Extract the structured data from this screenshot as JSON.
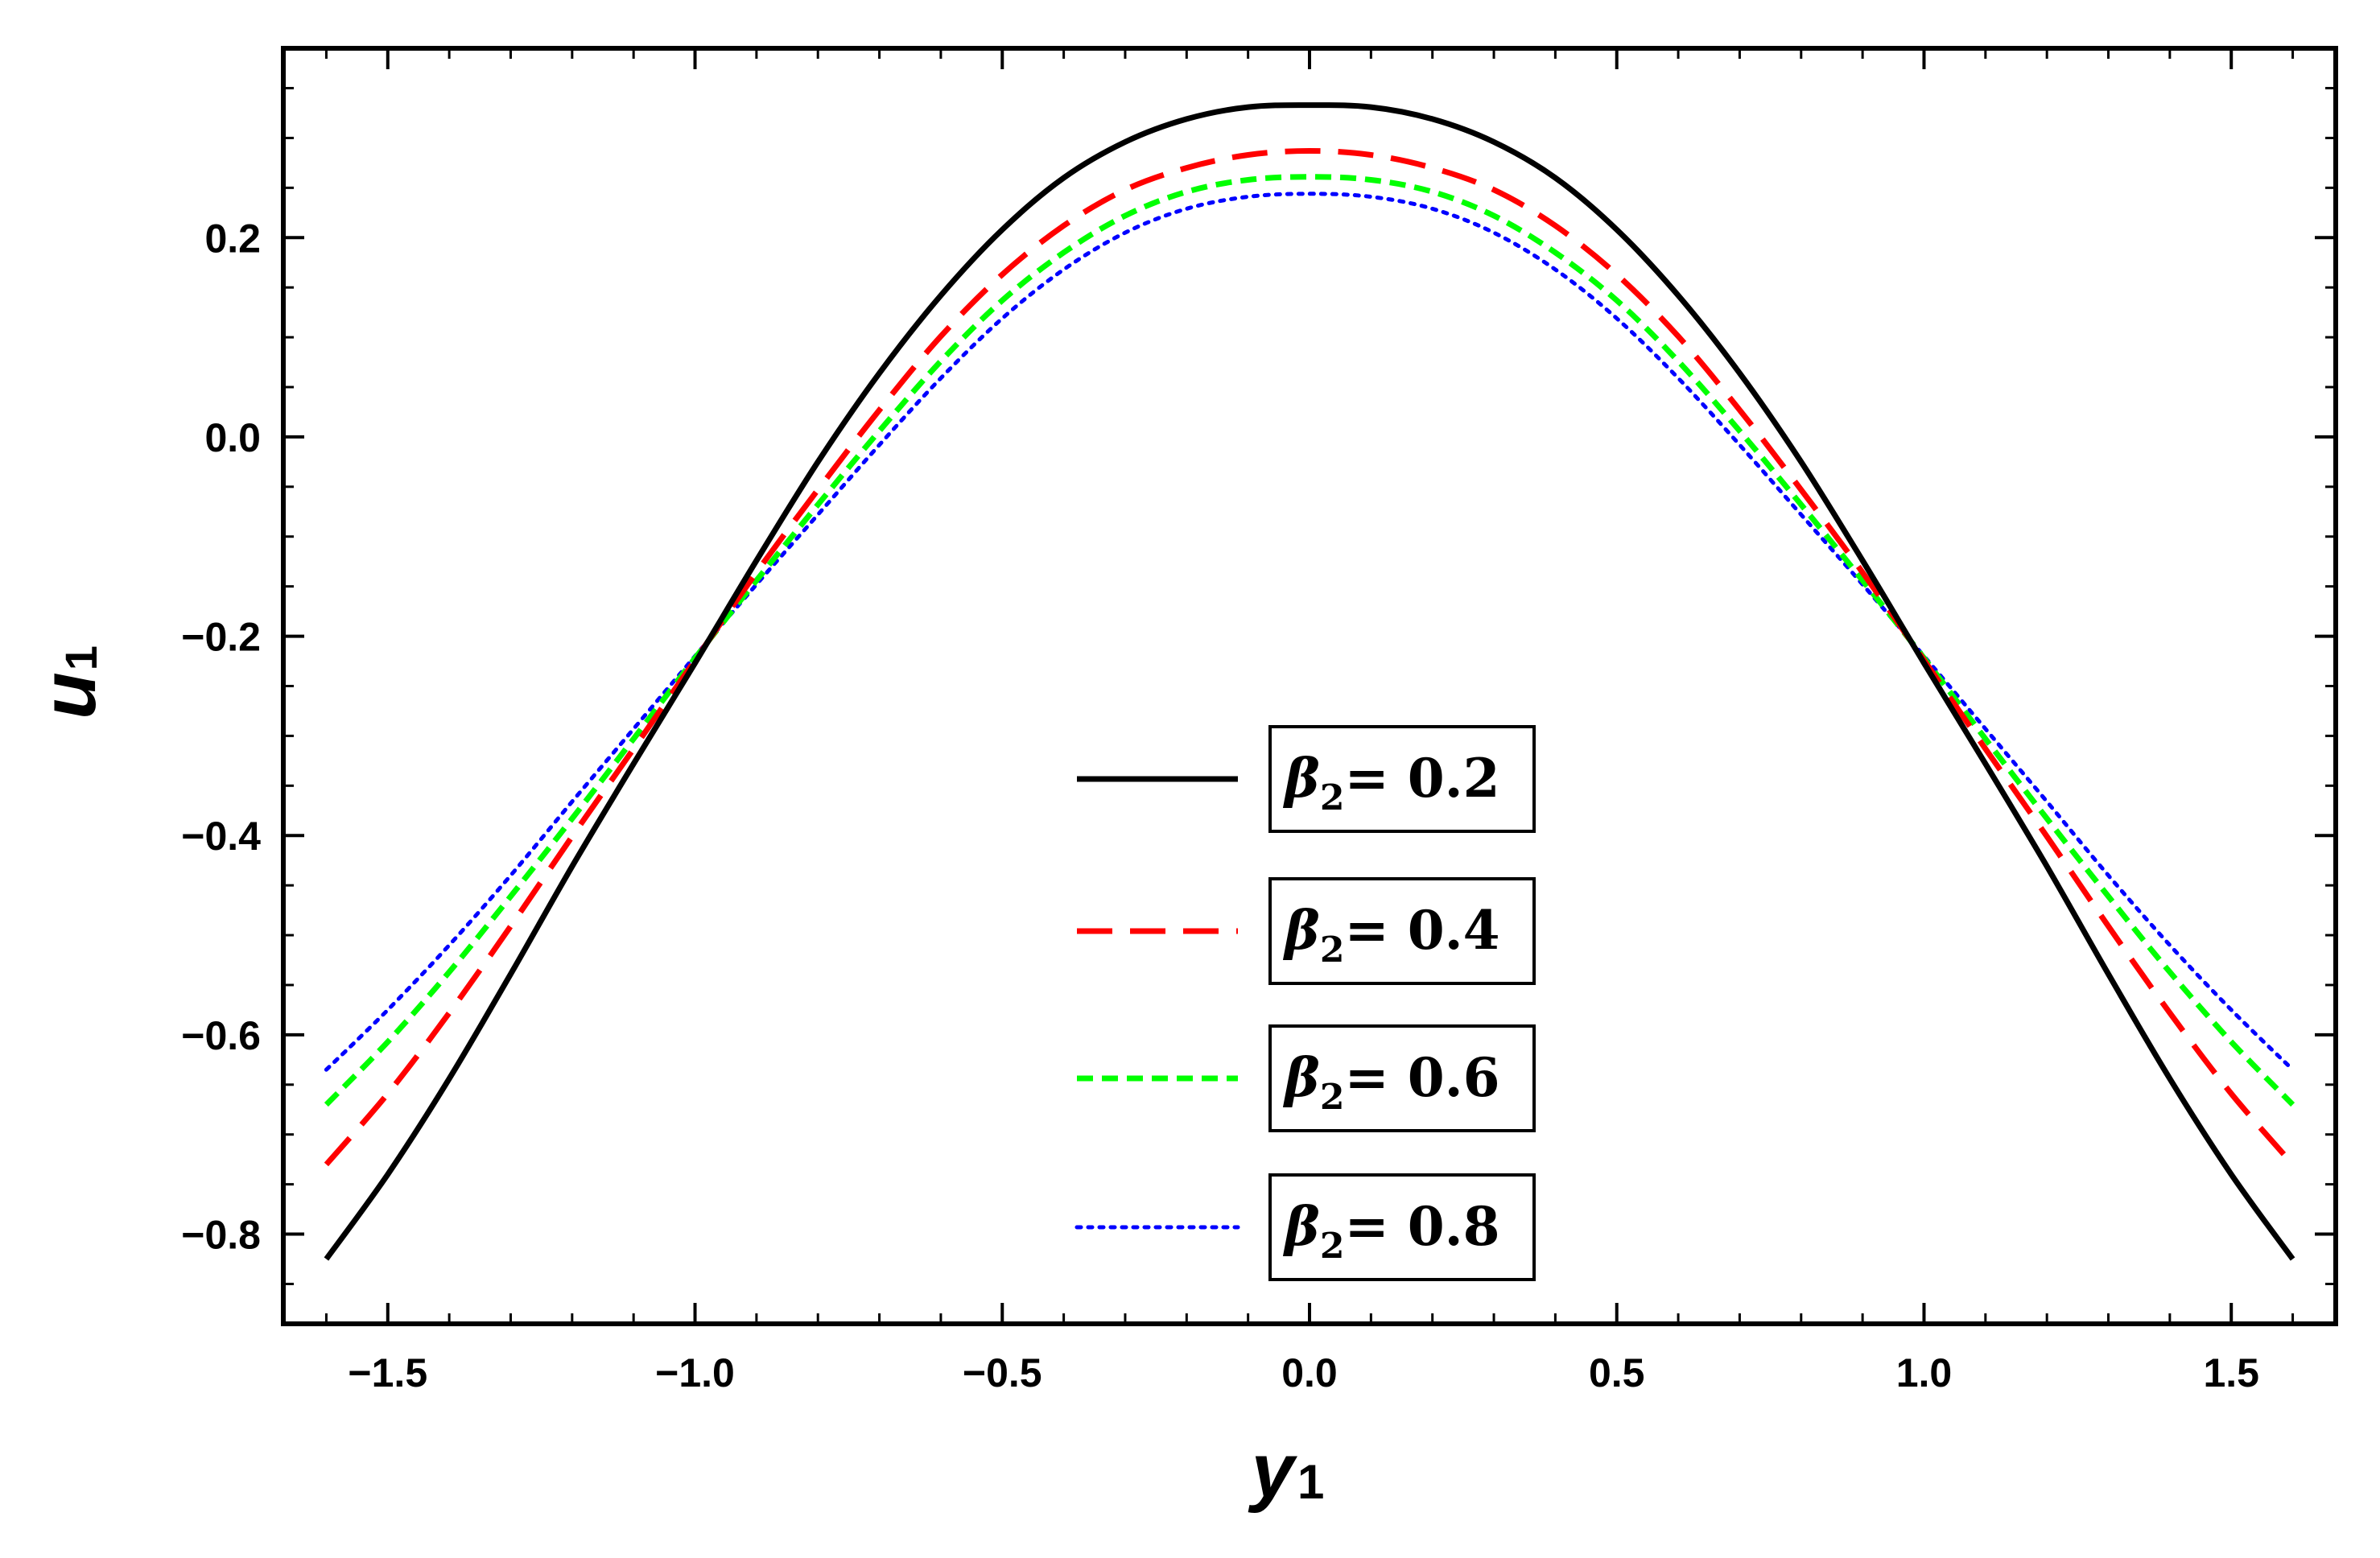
{
  "chart_data": {
    "type": "line",
    "xlabel": "y",
    "xlabel_sub": "1",
    "ylabel": "u",
    "ylabel_sub": "1",
    "xlim": [
      -1.67,
      1.67
    ],
    "ylim": [
      -0.89,
      0.39
    ],
    "xticks": [
      -1.5,
      -1.0,
      -0.5,
      0.0,
      0.5,
      1.0,
      1.5
    ],
    "xtick_labels": [
      "−1.5",
      "−1.0",
      "−0.5",
      "0.0",
      "0.5",
      "1.0",
      "1.5"
    ],
    "yticks": [
      0.2,
      0.0,
      -0.2,
      -0.4,
      -0.6,
      -0.8
    ],
    "ytick_labels": [
      "0.2",
      "0.0",
      "−0.2",
      "−0.4",
      "−0.6",
      "−0.8"
    ],
    "grid": false,
    "legend_placement": "center",
    "x": [
      -1.6,
      -1.5,
      -1.4,
      -1.3,
      -1.2,
      -1.1,
      -1.0,
      -0.9,
      -0.8,
      -0.7,
      -0.6,
      -0.5,
      -0.4,
      -0.3,
      -0.2,
      -0.1,
      0.0,
      0.1,
      0.2,
      0.3,
      0.4,
      0.5,
      0.6,
      0.7,
      0.8,
      0.9,
      1.0,
      1.1,
      1.2,
      1.3,
      1.4,
      1.5,
      1.6
    ],
    "series": [
      {
        "name": "β₂= 0.2",
        "legend_text": "= 0.2",
        "color": "#000000",
        "dash": "solid",
        "values": [
          -0.825,
          -0.74,
          -0.644,
          -0.539,
          -0.431,
          -0.328,
          -0.227,
          -0.124,
          -0.025,
          0.064,
          0.142,
          0.208,
          0.26,
          0.296,
          0.319,
          0.331,
          0.333,
          0.331,
          0.319,
          0.296,
          0.26,
          0.208,
          0.142,
          0.064,
          -0.025,
          -0.124,
          -0.227,
          -0.328,
          -0.431,
          -0.539,
          -0.644,
          -0.74,
          -0.825
        ]
      },
      {
        "name": "β₂ = 0.4",
        "legend_text": "= 0.4",
        "color": "#ff0000",
        "dash": "long-dash",
        "values": [
          -0.73,
          -0.659,
          -0.578,
          -0.491,
          -0.401,
          -0.313,
          -0.224,
          -0.136,
          -0.053,
          0.027,
          0.101,
          0.163,
          0.212,
          0.248,
          0.27,
          0.283,
          0.287,
          0.283,
          0.27,
          0.248,
          0.212,
          0.163,
          0.101,
          0.027,
          -0.053,
          -0.136,
          -0.224,
          -0.313,
          -0.401,
          -0.491,
          -0.578,
          -0.659,
          -0.73
        ]
      },
      {
        "name": "β₂= 0.6",
        "legend_text": "= 0.6",
        "color": "#00ff00",
        "dash": "short-dash",
        "values": [
          -0.67,
          -0.607,
          -0.537,
          -0.461,
          -0.383,
          -0.303,
          -0.222,
          -0.144,
          -0.068,
          0.006,
          0.076,
          0.137,
          0.185,
          0.222,
          0.246,
          0.258,
          0.261,
          0.258,
          0.246,
          0.222,
          0.185,
          0.137,
          0.076,
          0.006,
          -0.068,
          -0.144,
          -0.222,
          -0.303,
          -0.383,
          -0.461,
          -0.537,
          -0.607,
          -0.67
        ]
      },
      {
        "name": "β₂ = 0.8",
        "legend_text": "= 0.8",
        "color": "#0000ff",
        "dash": "dotted",
        "values": [
          -0.635,
          -0.575,
          -0.51,
          -0.44,
          -0.366,
          -0.293,
          -0.22,
          -0.148,
          -0.078,
          -0.008,
          0.059,
          0.119,
          0.168,
          0.205,
          0.229,
          0.241,
          0.244,
          0.241,
          0.229,
          0.205,
          0.168,
          0.119,
          0.059,
          -0.008,
          -0.078,
          -0.148,
          -0.22,
          -0.293,
          -0.366,
          -0.44,
          -0.51,
          -0.575,
          -0.635
        ]
      }
    ]
  }
}
